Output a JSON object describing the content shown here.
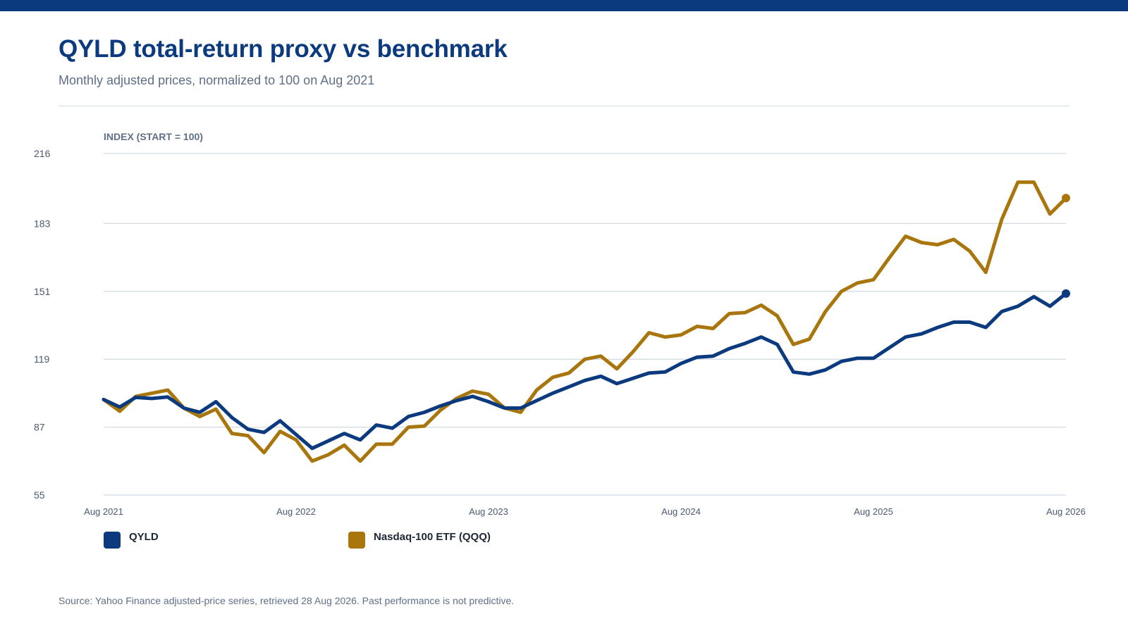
{
  "page": {
    "title": "QYLD total-return proxy vs benchmark",
    "subtitle": "Monthly adjusted prices, normalized to 100 on Aug 2021",
    "source": "Source: Yahoo Finance adjusted-price series, retrieved 28 Aug 2026. Past performance is not predictive."
  },
  "colors": {
    "brand": "#0b3a7e",
    "qyld": "#0b3a7e",
    "qqq": "#a8760d",
    "grid": "#d3dbe6"
  },
  "chart_data": {
    "type": "line",
    "ylabel": "INDEX (START = 100)",
    "ylim": [
      55,
      216
    ],
    "yticks": [
      55,
      87,
      119,
      151,
      183,
      216
    ],
    "xlim": [
      "2021-08",
      "2026-08"
    ],
    "xticks": [
      {
        "date": "2021-08",
        "label": "Aug 2021"
      },
      {
        "date": "2022-08",
        "label": "Aug 2022"
      },
      {
        "date": "2023-08",
        "label": "Aug 2023"
      },
      {
        "date": "2024-08",
        "label": "Aug 2024"
      },
      {
        "date": "2025-08",
        "label": "Aug 2025"
      },
      {
        "date": "2026-08",
        "label": "Aug 2026"
      }
    ],
    "grid": true,
    "legend": "bottom-left",
    "x": [
      "2021-08",
      "2021-09",
      "2021-10",
      "2021-11",
      "2021-12",
      "2022-01",
      "2022-02",
      "2022-03",
      "2022-04",
      "2022-05",
      "2022-06",
      "2022-07",
      "2022-08",
      "2022-09",
      "2022-10",
      "2022-11",
      "2022-12",
      "2023-01",
      "2023-02",
      "2023-03",
      "2023-04",
      "2023-05",
      "2023-06",
      "2023-07",
      "2023-08",
      "2023-09",
      "2023-10",
      "2023-11",
      "2023-12",
      "2024-01",
      "2024-02",
      "2024-03",
      "2024-04",
      "2024-05",
      "2024-06",
      "2024-07",
      "2024-08",
      "2024-09",
      "2024-10",
      "2024-11",
      "2024-12",
      "2025-01",
      "2025-02",
      "2025-03",
      "2025-04",
      "2025-05",
      "2025-06",
      "2025-07",
      "2025-08",
      "2025-09",
      "2025-10",
      "2025-11",
      "2025-12",
      "2026-01",
      "2026-02",
      "2026-03",
      "2026-04",
      "2026-05",
      "2026-06",
      "2026-07",
      "2026-08"
    ],
    "series": [
      {
        "name": "QYLD",
        "color": "#0b3a7e",
        "values": [
          100,
          96.5,
          101,
          100.5,
          101.2,
          96,
          94,
          99,
          91.5,
          86,
          84.5,
          90,
          83.5,
          77,
          80.5,
          84,
          81,
          88,
          86.5,
          92,
          94,
          97,
          99.5,
          101.5,
          99,
          96,
          96,
          99.5,
          103,
          106,
          109,
          111,
          107.5,
          110,
          112.5,
          113,
          117,
          120,
          120.5,
          124,
          126.5,
          129.5,
          126,
          113,
          112,
          114,
          118,
          119.5,
          119.5,
          124.5,
          129.5,
          131,
          134,
          136.5,
          136.5,
          134,
          141.5,
          144,
          148.5,
          144,
          150
        ]
      },
      {
        "name": "Nasdaq-100 ETF (QQQ)",
        "color": "#a8760d",
        "values": [
          100,
          94.5,
          101.5,
          103,
          104.5,
          96,
          92,
          95.5,
          84,
          83,
          75,
          85,
          81,
          71,
          74,
          78.5,
          71,
          79,
          79,
          87,
          87.5,
          95,
          100.5,
          104,
          102.5,
          96,
          94,
          104.5,
          110.5,
          112.5,
          119,
          120.5,
          114.5,
          122.5,
          131.5,
          129.5,
          130.5,
          134.5,
          133.5,
          140.5,
          141,
          144.5,
          139.5,
          126,
          128.5,
          141.5,
          151,
          155,
          156.5,
          167,
          177,
          174,
          173,
          175.5,
          170,
          160,
          185,
          202.5,
          202.5,
          187.5,
          195
        ]
      }
    ]
  }
}
